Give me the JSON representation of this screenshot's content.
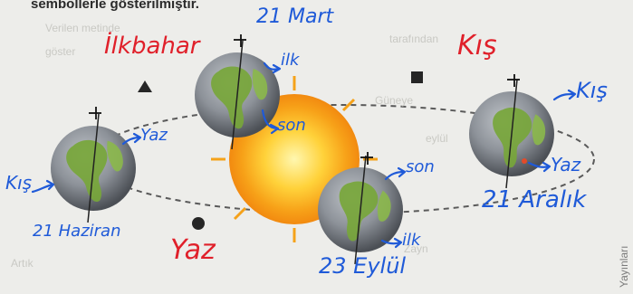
{
  "header_text": "sembollerle gösterilmiştir.",
  "side_text": "Yayınları",
  "faded_text": [
    "Verilen metinde",
    "göster",
    "Güneye",
    "eylül",
    "Zayn",
    "Artık",
    "tarafından"
  ],
  "season_labels": {
    "triangle": "İlkbahar",
    "square": "Kış",
    "circle": "Yaz"
  },
  "positions": {
    "summer": {
      "date": "21 Haziran",
      "left_note": "Kış",
      "right_note": "Yaz"
    },
    "spring": {
      "date": "21 Mart",
      "note_top": "ilk",
      "note_bottom": "son"
    },
    "autumn": {
      "date": "23 Eylül",
      "note_top": "son",
      "note_bottom": "ilk"
    },
    "winter": {
      "date": "21 Aralık",
      "note_top": "Kış",
      "note_bottom": "Yaz"
    }
  },
  "colors": {
    "ink_blue": "#1f5ad8",
    "ink_red": "#e0202a",
    "sun": "#f5a21a"
  }
}
